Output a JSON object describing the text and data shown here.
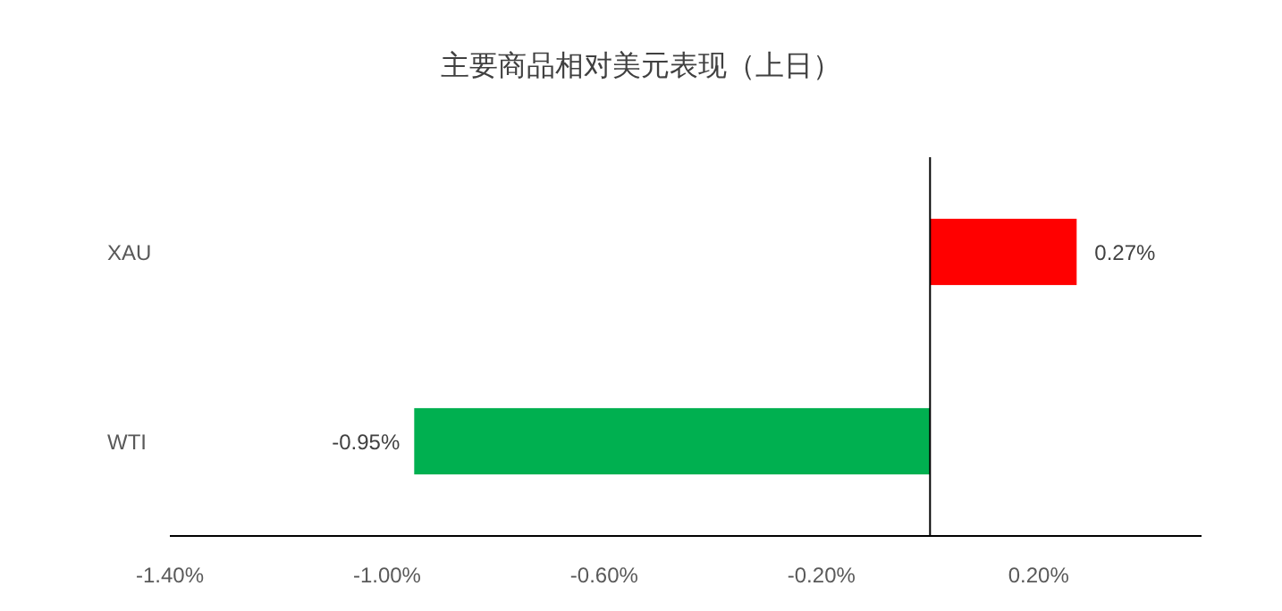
{
  "chart_data": {
    "type": "bar",
    "orientation": "horizontal",
    "title": "主要商品相对美元表现（上日）",
    "categories": [
      "XAU",
      "WTI"
    ],
    "values": [
      0.27,
      -0.95
    ],
    "colors": [
      "#ff0000",
      "#00b050"
    ],
    "value_labels": [
      "0.27%",
      "-0.95%"
    ],
    "xlim": [
      -1.4,
      0.5
    ],
    "xticks": [
      {
        "value": -1.4,
        "label": "-1.40%"
      },
      {
        "value": -1.0,
        "label": "-1.00%"
      },
      {
        "value": -0.6,
        "label": "-0.60%"
      },
      {
        "value": -0.2,
        "label": "-0.20%"
      },
      {
        "value": 0.2,
        "label": "0.20%"
      }
    ],
    "grid": false
  }
}
